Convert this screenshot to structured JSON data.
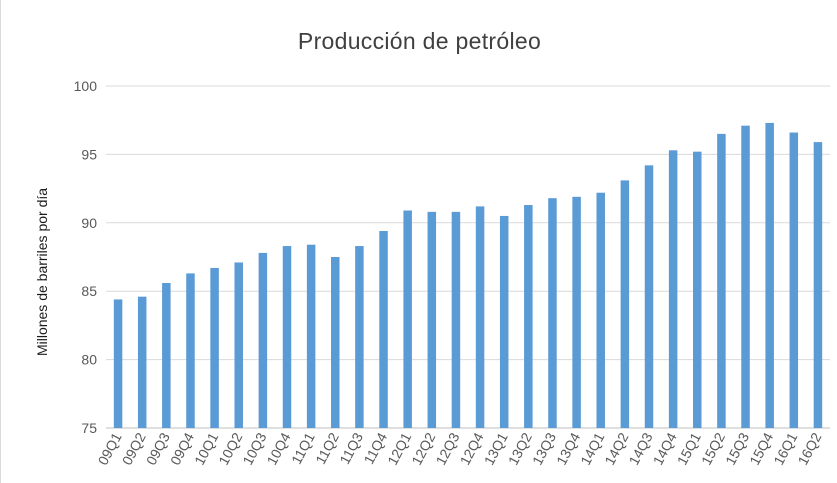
{
  "chart_data": {
    "type": "bar",
    "title": "Producción de petróleo",
    "xlabel": "",
    "ylabel": "Millones de barriles por día",
    "ylim": [
      75,
      100
    ],
    "yticks": [
      75,
      80,
      85,
      90,
      95,
      100
    ],
    "grid": true,
    "color": "#5b9bd5",
    "categories": [
      "09Q1",
      "09Q2",
      "09Q3",
      "09Q4",
      "10Q1",
      "10Q2",
      "10Q3",
      "10Q4",
      "11Q1",
      "11Q2",
      "11Q3",
      "11Q4",
      "12Q1",
      "12Q2",
      "12Q3",
      "12Q4",
      "13Q1",
      "13Q2",
      "13Q3",
      "13Q4",
      "14Q1",
      "14Q2",
      "14Q3",
      "14Q4",
      "15Q1",
      "15Q2",
      "15Q3",
      "15Q4",
      "16Q1",
      "16Q2"
    ],
    "values": [
      84.4,
      84.6,
      85.6,
      86.3,
      86.7,
      87.1,
      87.8,
      88.3,
      88.4,
      87.5,
      88.3,
      89.4,
      90.9,
      90.8,
      90.8,
      91.2,
      90.5,
      91.3,
      91.8,
      91.9,
      92.2,
      93.1,
      94.2,
      95.3,
      95.2,
      96.5,
      97.1,
      97.3,
      96.6,
      95.9
    ]
  }
}
